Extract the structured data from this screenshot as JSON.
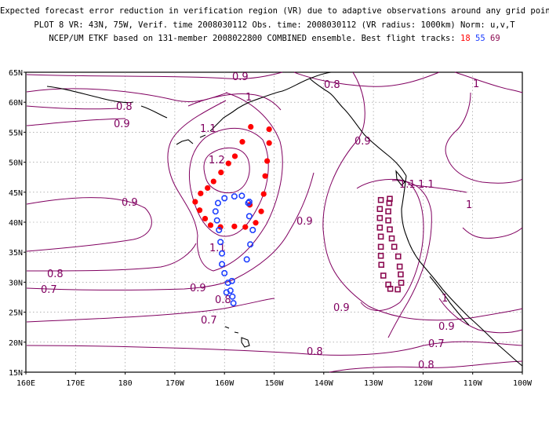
{
  "title": {
    "line1": "Expected forecast error reduction in verification region (VR) due to adaptive observations around any grid point.",
    "line2": "PLOT 8 VR: 43N, 75W, Verif. time 2008030112 Obs. time: 2008030112 (VR radius: 1000km) Norm: u,v,T",
    "line3_prefix": "NCEP/UM ETKF based on 131-member 2008022800 COMBINED ensemble.  Best flight tracks:",
    "track_red": "18",
    "track_blue": "55",
    "track_purple": "69"
  },
  "colors": {
    "contour": "#800060",
    "track_red": "#ff0000",
    "track_blue": "#1a3cff",
    "track_purple": "#8b0a50",
    "coast": "#000000"
  },
  "axes": {
    "lat_labels": [
      "65N",
      "60N",
      "55N",
      "50N",
      "45N",
      "40N",
      "35N",
      "30N",
      "25N",
      "20N",
      "15N"
    ],
    "lon_labels": [
      "160E",
      "170E",
      "180",
      "170W",
      "160W",
      "150W",
      "140W",
      "130W",
      "120W",
      "110W",
      "100W"
    ]
  },
  "contour_labels": [
    "0.9",
    "0.8",
    "1",
    "0.8",
    "0.9",
    "1.1",
    "1.2",
    "0.9",
    "0.9",
    "1.1",
    "1.1",
    "1",
    "1",
    "0.9",
    "1.1",
    "0.8",
    "0.7",
    "0.9",
    "0.8",
    "0.7",
    "0.9",
    "0.9",
    "0.8",
    "0.7",
    "1",
    "0.8"
  ],
  "tracks": {
    "red": [
      [
        -154.7,
        55.9
      ],
      [
        -156.4,
        53.4
      ],
      [
        -157.9,
        51.0
      ],
      [
        -159.2,
        49.8
      ],
      [
        -160.7,
        48.3
      ],
      [
        -162.2,
        46.8
      ],
      [
        -163.4,
        45.7
      ],
      [
        -164.8,
        44.8
      ],
      [
        -165.9,
        43.4
      ],
      [
        -165.0,
        42.0
      ],
      [
        -163.9,
        40.6
      ],
      [
        -162.8,
        39.5
      ],
      [
        -160.8,
        39.2
      ],
      [
        -158.0,
        39.3
      ],
      [
        -155.8,
        39.2
      ],
      [
        -153.7,
        39.9
      ],
      [
        -152.6,
        41.8
      ],
      [
        -152.1,
        44.7
      ],
      [
        -151.8,
        47.7
      ],
      [
        -151.4,
        50.2
      ],
      [
        -151.0,
        53.2
      ],
      [
        -151.0,
        55.5
      ],
      [
        -154.9,
        42.9
      ]
    ],
    "blue": [
      [
        -158.0,
        44.3
      ],
      [
        -160.0,
        44.0
      ],
      [
        -161.3,
        43.2
      ],
      [
        -161.8,
        41.8
      ],
      [
        -161.5,
        40.3
      ],
      [
        -161.1,
        38.7
      ],
      [
        -160.8,
        36.7
      ],
      [
        -160.5,
        34.8
      ],
      [
        -160.5,
        33.0
      ],
      [
        -160.0,
        31.5
      ],
      [
        -159.3,
        29.9
      ],
      [
        -158.8,
        28.6
      ],
      [
        -158.4,
        27.6
      ],
      [
        -158.2,
        26.5
      ],
      [
        -158.5,
        30.2
      ],
      [
        -159.6,
        28.3
      ],
      [
        -155.5,
        33.8
      ],
      [
        -154.8,
        36.3
      ],
      [
        -154.3,
        38.7
      ],
      [
        -155.0,
        41.0
      ],
      [
        -155.0,
        43.4
      ],
      [
        -156.5,
        44.4
      ],
      [
        -155.2,
        43.2
      ]
    ],
    "purple": [
      [
        -128.5,
        43.7
      ],
      [
        -128.7,
        42.2
      ],
      [
        -128.7,
        40.7
      ],
      [
        -128.7,
        39.1
      ],
      [
        -128.5,
        37.6
      ],
      [
        -128.5,
        35.9
      ],
      [
        -128.5,
        34.4
      ],
      [
        -128.4,
        32.9
      ],
      [
        -128.0,
        31.1
      ],
      [
        -127.0,
        29.6
      ],
      [
        -126.6,
        28.9
      ],
      [
        -125.1,
        28.8
      ],
      [
        -124.4,
        29.9
      ],
      [
        -124.5,
        31.3
      ],
      [
        -124.7,
        32.6
      ],
      [
        -125.0,
        34.3
      ],
      [
        -125.8,
        35.9
      ],
      [
        -126.3,
        37.3
      ],
      [
        -126.7,
        38.8
      ],
      [
        -127.0,
        40.3
      ],
      [
        -127.0,
        41.8
      ],
      [
        -126.8,
        43.2
      ],
      [
        -126.7,
        43.9
      ]
    ]
  }
}
